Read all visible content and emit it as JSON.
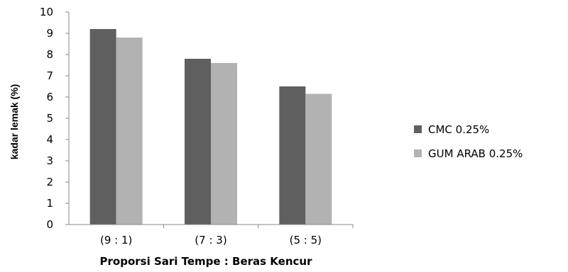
{
  "chart_data": {
    "type": "bar",
    "title": "",
    "xlabel": "Proporsi Sari Tempe : Beras Kencur",
    "ylabel": "kadar lemak (%)",
    "categories": [
      "(9 : 1)",
      "(7 : 3)",
      "(5 : 5)"
    ],
    "series": [
      {
        "name": "CMC 0.25%",
        "values": [
          9.2,
          7.8,
          6.5
        ],
        "color": "#5f5f5f"
      },
      {
        "name": "GUM ARAB 0.25%",
        "values": [
          8.8,
          7.6,
          6.15
        ],
        "color": "#b2b2b2"
      }
    ],
    "ylim": [
      0,
      10
    ],
    "yticks": [
      0,
      1,
      2,
      3,
      4,
      5,
      6,
      7,
      8,
      9,
      10
    ],
    "grid": false,
    "legend_position": "right"
  }
}
